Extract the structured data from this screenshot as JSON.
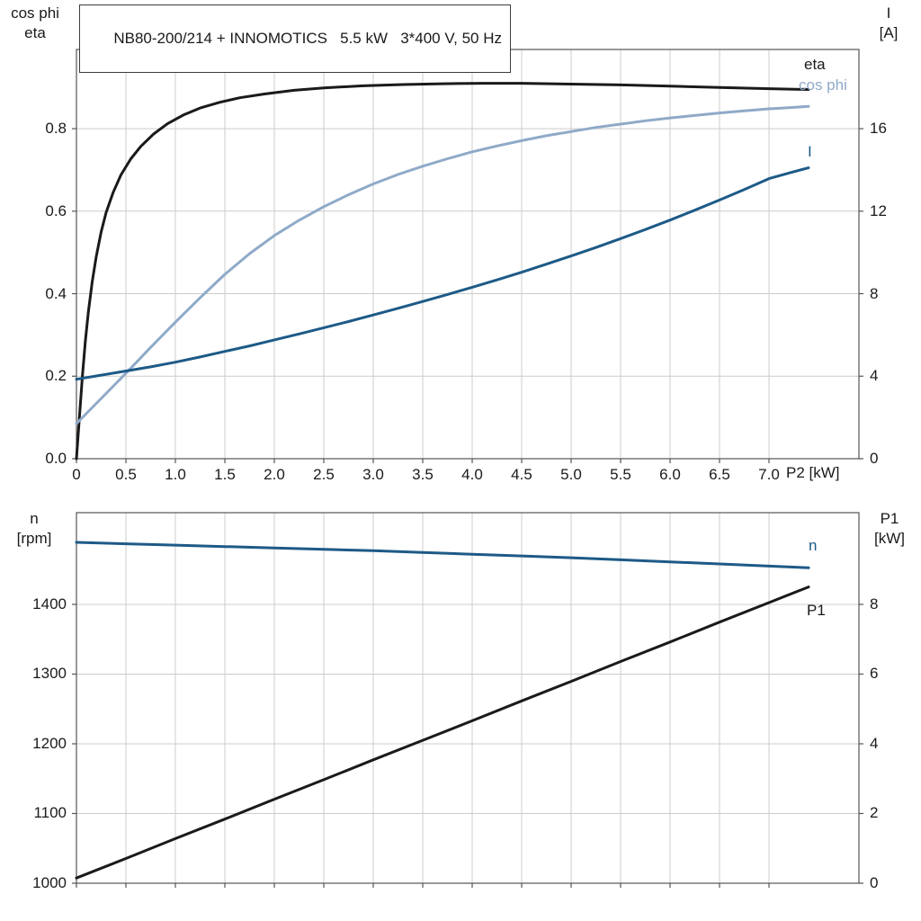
{
  "page": {
    "background": "#ffffff"
  },
  "colors": {
    "grid": "#cccccc",
    "axis": "#555555",
    "text": "#1a1a1a"
  },
  "chart_data": [
    {
      "type": "line",
      "title": "NB80-200/214 + INNOMOTICS   5.5 kW   3*400 V, 50 Hz",
      "x": {
        "title": "P2 [kW]",
        "min": 0,
        "max": 7.909,
        "ticks": [
          {
            "v": 0,
            "t": "0"
          },
          {
            "v": 0.5,
            "t": "0.5"
          },
          {
            "v": 1,
            "t": "1.0"
          },
          {
            "v": 1.5,
            "t": "1.5"
          },
          {
            "v": 2,
            "t": "2.0"
          },
          {
            "v": 2.5,
            "t": "2.5"
          },
          {
            "v": 3,
            "t": "3.0"
          },
          {
            "v": 3.5,
            "t": "3.5"
          },
          {
            "v": 4,
            "t": "4.0"
          },
          {
            "v": 4.5,
            "t": "4.5"
          },
          {
            "v": 5,
            "t": "5.0"
          },
          {
            "v": 5.5,
            "t": "5.5"
          },
          {
            "v": 6,
            "t": "6.0"
          },
          {
            "v": 6.5,
            "t": "6.5"
          },
          {
            "v": 7,
            "t": "7.0"
          }
        ]
      },
      "y_left": {
        "title_lines": [
          "cos phi",
          "eta"
        ],
        "min": 0,
        "max": 0.992,
        "ticks": [
          {
            "v": 0,
            "t": "0.0"
          },
          {
            "v": 0.2,
            "t": "0.2"
          },
          {
            "v": 0.4,
            "t": "0.4"
          },
          {
            "v": 0.6,
            "t": "0.6"
          },
          {
            "v": 0.8,
            "t": "0.8"
          }
        ]
      },
      "y_right": {
        "title_lines": [
          "I",
          "[A]"
        ],
        "min": 0,
        "max": 19.84,
        "ticks": [
          {
            "v": 0,
            "t": "0"
          },
          {
            "v": 4,
            "t": "4"
          },
          {
            "v": 8,
            "t": "8"
          },
          {
            "v": 12,
            "t": "12"
          },
          {
            "v": 16,
            "t": "16"
          }
        ]
      },
      "series": [
        {
          "name": "eta",
          "axis": "left",
          "color": "#1a1a1a",
          "points": [
            [
              0,
              0
            ],
            [
              0.03,
              0.1
            ],
            [
              0.06,
              0.2
            ],
            [
              0.09,
              0.285
            ],
            [
              0.12,
              0.355
            ],
            [
              0.16,
              0.43
            ],
            [
              0.2,
              0.49
            ],
            [
              0.25,
              0.55
            ],
            [
              0.3,
              0.597
            ],
            [
              0.37,
              0.645
            ],
            [
              0.45,
              0.688
            ],
            [
              0.55,
              0.727
            ],
            [
              0.65,
              0.757
            ],
            [
              0.78,
              0.787
            ],
            [
              0.92,
              0.812
            ],
            [
              1.08,
              0.833
            ],
            [
              1.25,
              0.85
            ],
            [
              1.45,
              0.864
            ],
            [
              1.65,
              0.875
            ],
            [
              1.9,
              0.884
            ],
            [
              2.2,
              0.893
            ],
            [
              2.5,
              0.899
            ],
            [
              2.9,
              0.904
            ],
            [
              3.3,
              0.907
            ],
            [
              3.7,
              0.909
            ],
            [
              4.1,
              0.91
            ],
            [
              4.5,
              0.91
            ],
            [
              5.0,
              0.908
            ],
            [
              5.5,
              0.906
            ],
            [
              6.0,
              0.903
            ],
            [
              6.5,
              0.9
            ],
            [
              7.0,
              0.897
            ],
            [
              7.4,
              0.895
            ]
          ]
        },
        {
          "name": "cos phi",
          "axis": "left",
          "color": "#8faac8",
          "points": [
            [
              0,
              0.085
            ],
            [
              0.25,
              0.146
            ],
            [
              0.5,
              0.207
            ],
            [
              0.75,
              0.27
            ],
            [
              1.0,
              0.331
            ],
            [
              1.25,
              0.39
            ],
            [
              1.5,
              0.447
            ],
            [
              1.75,
              0.497
            ],
            [
              2.0,
              0.541
            ],
            [
              2.25,
              0.578
            ],
            [
              2.5,
              0.611
            ],
            [
              2.75,
              0.64
            ],
            [
              3.0,
              0.666
            ],
            [
              3.25,
              0.689
            ],
            [
              3.5,
              0.709
            ],
            [
              3.75,
              0.727
            ],
            [
              4.0,
              0.744
            ],
            [
              4.25,
              0.758
            ],
            [
              4.5,
              0.771
            ],
            [
              4.75,
              0.783
            ],
            [
              5.0,
              0.793
            ],
            [
              5.25,
              0.803
            ],
            [
              5.5,
              0.811
            ],
            [
              5.75,
              0.819
            ],
            [
              6.0,
              0.826
            ],
            [
              6.25,
              0.832
            ],
            [
              6.5,
              0.838
            ],
            [
              6.75,
              0.843
            ],
            [
              7.0,
              0.848
            ],
            [
              7.2,
              0.851
            ],
            [
              7.4,
              0.854
            ]
          ]
        },
        {
          "name": "I",
          "axis": "right",
          "color": "#1d5a87",
          "points": [
            [
              0,
              3.85
            ],
            [
              0.25,
              4.05
            ],
            [
              0.5,
              4.25
            ],
            [
              0.75,
              4.45
            ],
            [
              1.0,
              4.68
            ],
            [
              1.25,
              4.93
            ],
            [
              1.5,
              5.2
            ],
            [
              1.75,
              5.47
            ],
            [
              2.0,
              5.76
            ],
            [
              2.25,
              6.05
            ],
            [
              2.5,
              6.35
            ],
            [
              2.75,
              6.65
            ],
            [
              3.0,
              6.97
            ],
            [
              3.25,
              7.29
            ],
            [
              3.5,
              7.62
            ],
            [
              3.75,
              7.96
            ],
            [
              4.0,
              8.31
            ],
            [
              4.25,
              8.67
            ],
            [
              4.5,
              9.04
            ],
            [
              4.75,
              9.43
            ],
            [
              5.0,
              9.83
            ],
            [
              5.25,
              10.24
            ],
            [
              5.5,
              10.67
            ],
            [
              5.75,
              11.11
            ],
            [
              6.0,
              11.57
            ],
            [
              6.25,
              12.05
            ],
            [
              6.5,
              12.54
            ],
            [
              6.75,
              13.05
            ],
            [
              7.0,
              13.58
            ],
            [
              7.2,
              13.85
            ],
            [
              7.4,
              14.1
            ]
          ]
        }
      ]
    },
    {
      "type": "line",
      "x": {
        "min": 0,
        "max": 7.909,
        "ticks": []
      },
      "y_left": {
        "title_lines": [
          "n",
          "[rpm]"
        ],
        "min": 1000,
        "max": 1531.6,
        "ticks": [
          {
            "v": 1000,
            "t": "1000"
          },
          {
            "v": 1100,
            "t": "1100"
          },
          {
            "v": 1200,
            "t": "1200"
          },
          {
            "v": 1300,
            "t": "1300"
          },
          {
            "v": 1400,
            "t": "1400"
          }
        ]
      },
      "y_right": {
        "title_lines": [
          "P1",
          "[kW]"
        ],
        "min": 0,
        "max": 10.63,
        "ticks": [
          {
            "v": 0,
            "t": "0"
          },
          {
            "v": 2,
            "t": "2"
          },
          {
            "v": 4,
            "t": "4"
          },
          {
            "v": 6,
            "t": "6"
          },
          {
            "v": 8,
            "t": "8"
          }
        ]
      },
      "series": [
        {
          "name": "n",
          "axis": "left",
          "color": "#1d5a87",
          "points": [
            [
              0,
              1489
            ],
            [
              0.5,
              1487
            ],
            [
              1.0,
              1485
            ],
            [
              1.5,
              1483
            ],
            [
              2.0,
              1481
            ],
            [
              2.5,
              1479
            ],
            [
              3.0,
              1477
            ],
            [
              3.5,
              1474.5
            ],
            [
              4.0,
              1472
            ],
            [
              4.5,
              1469.5
            ],
            [
              5.0,
              1467
            ],
            [
              5.5,
              1464
            ],
            [
              6.0,
              1461
            ],
            [
              6.5,
              1458
            ],
            [
              7.0,
              1455
            ],
            [
              7.4,
              1452.5
            ]
          ]
        },
        {
          "name": "P1",
          "axis": "right",
          "color": "#1a1a1a",
          "points": [
            [
              0,
              0.15
            ],
            [
              0.5,
              0.71
            ],
            [
              1.0,
              1.28
            ],
            [
              1.5,
              1.84
            ],
            [
              2.0,
              2.41
            ],
            [
              2.5,
              2.97
            ],
            [
              3.0,
              3.54
            ],
            [
              3.5,
              4.1
            ],
            [
              4.0,
              4.66
            ],
            [
              4.5,
              5.23
            ],
            [
              5.0,
              5.79
            ],
            [
              5.5,
              6.36
            ],
            [
              6.0,
              6.92
            ],
            [
              6.5,
              7.49
            ],
            [
              7.0,
              8.05
            ],
            [
              7.4,
              8.5
            ]
          ]
        }
      ]
    }
  ]
}
